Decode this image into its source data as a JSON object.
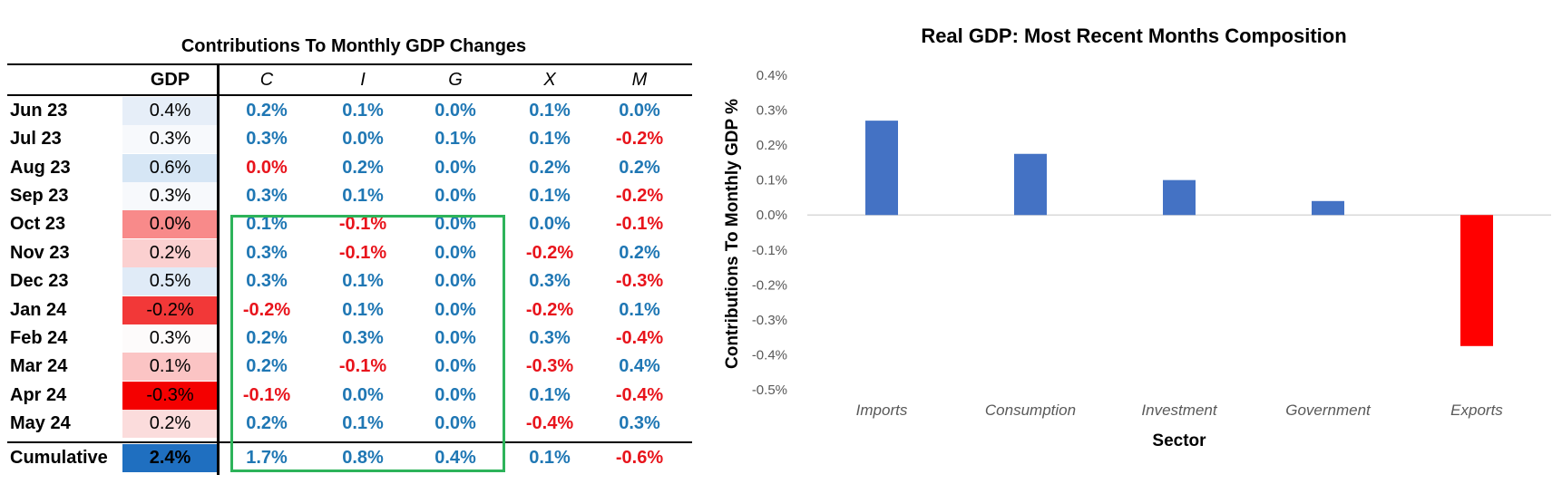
{
  "table": {
    "title": "Contributions To Monthly GDP Changes",
    "headers": [
      "GDP",
      "C",
      "I",
      "G",
      "X",
      "M"
    ],
    "rows": [
      {
        "label": "Jun 23",
        "gdp": "0.4%",
        "gdp_color": "#e6eef8",
        "cells": [
          "0.2%",
          "0.1%",
          "0.0%",
          "0.1%",
          "0.0%"
        ],
        "colors": [
          "#1f77b4",
          "#1f77b4",
          "#1f77b4",
          "#1f77b4",
          "#1f77b4"
        ]
      },
      {
        "label": "Jul 23",
        "gdp": "0.3%",
        "gdp_color": "#f7f9fc",
        "cells": [
          "0.3%",
          "0.0%",
          "0.1%",
          "0.1%",
          "-0.2%"
        ],
        "colors": [
          "#1f77b4",
          "#1f77b4",
          "#1f77b4",
          "#1f77b4",
          "#e8141c"
        ]
      },
      {
        "label": "Aug 23",
        "gdp": "0.6%",
        "gdp_color": "#d6e6f5",
        "cells": [
          "0.0%",
          "0.2%",
          "0.0%",
          "0.2%",
          "0.2%"
        ],
        "colors": [
          "#e8141c",
          "#1f77b4",
          "#1f77b4",
          "#1f77b4",
          "#1f77b4"
        ]
      },
      {
        "label": "Sep 23",
        "gdp": "0.3%",
        "gdp_color": "#f7f9fc",
        "cells": [
          "0.3%",
          "0.1%",
          "0.0%",
          "0.1%",
          "-0.2%"
        ],
        "colors": [
          "#1f77b4",
          "#1f77b4",
          "#1f77b4",
          "#1f77b4",
          "#e8141c"
        ]
      },
      {
        "label": "Oct 23",
        "gdp": "0.0%",
        "gdp_color": "#f88a8a",
        "cells": [
          "0.1%",
          "-0.1%",
          "0.0%",
          "0.0%",
          "-0.1%"
        ],
        "colors": [
          "#1f77b4",
          "#e8141c",
          "#1f77b4",
          "#1f77b4",
          "#e8141c"
        ]
      },
      {
        "label": "Nov 23",
        "gdp": "0.2%",
        "gdp_color": "#fbd0d0",
        "cells": [
          "0.3%",
          "-0.1%",
          "0.0%",
          "-0.2%",
          "0.2%"
        ],
        "colors": [
          "#1f77b4",
          "#e8141c",
          "#1f77b4",
          "#e8141c",
          "#1f77b4"
        ]
      },
      {
        "label": "Dec 23",
        "gdp": "0.5%",
        "gdp_color": "#e0ebf7",
        "cells": [
          "0.3%",
          "0.1%",
          "0.0%",
          "0.3%",
          "-0.3%"
        ],
        "colors": [
          "#1f77b4",
          "#1f77b4",
          "#1f77b4",
          "#1f77b4",
          "#e8141c"
        ]
      },
      {
        "label": "Jan 24",
        "gdp": "-0.2%",
        "gdp_color": "#f23838",
        "cells": [
          "-0.2%",
          "0.1%",
          "0.0%",
          "-0.2%",
          "0.1%"
        ],
        "colors": [
          "#e8141c",
          "#1f77b4",
          "#1f77b4",
          "#e8141c",
          "#1f77b4"
        ]
      },
      {
        "label": "Feb 24",
        "gdp": "0.3%",
        "gdp_color": "#fdfbfb",
        "cells": [
          "0.2%",
          "0.3%",
          "0.0%",
          "0.3%",
          "-0.4%"
        ],
        "colors": [
          "#1f77b4",
          "#1f77b4",
          "#1f77b4",
          "#1f77b4",
          "#e8141c"
        ]
      },
      {
        "label": "Mar 24",
        "gdp": "0.1%",
        "gdp_color": "#fbc4c4",
        "cells": [
          "0.2%",
          "-0.1%",
          "0.0%",
          "-0.3%",
          "0.4%"
        ],
        "colors": [
          "#1f77b4",
          "#e8141c",
          "#1f77b4",
          "#e8141c",
          "#1f77b4"
        ]
      },
      {
        "label": "Apr 24",
        "gdp": "-0.3%",
        "gdp_color": "#f40000",
        "cells": [
          "-0.1%",
          "0.0%",
          "0.0%",
          "0.1%",
          "-0.4%"
        ],
        "colors": [
          "#e8141c",
          "#1f77b4",
          "#1f77b4",
          "#1f77b4",
          "#e8141c"
        ]
      },
      {
        "label": "May 24",
        "gdp": "0.2%",
        "gdp_color": "#fbdcdc",
        "cells": [
          "0.2%",
          "0.1%",
          "0.0%",
          "-0.4%",
          "0.3%"
        ],
        "colors": [
          "#1f77b4",
          "#1f77b4",
          "#1f77b4",
          "#e8141c",
          "#1f77b4"
        ]
      }
    ],
    "cumulative": {
      "label": "Cumulative",
      "gdp": "2.4%",
      "gdp_color": "#1f6fc0",
      "cells": [
        "1.7%",
        "0.8%",
        "0.4%",
        "0.1%",
        "-0.6%"
      ],
      "colors": [
        "#1f77b4",
        "#1f77b4",
        "#1f77b4",
        "#1f77b4",
        "#e8141c"
      ]
    },
    "highlight_color": "#2db35a"
  },
  "chart_data": {
    "type": "bar",
    "title": "Real GDP: Most Recent Months Composition",
    "xlabel": "Sector",
    "ylabel": "Contributions To Monthly GDP %",
    "categories": [
      "Imports",
      "Consumption",
      "Investment",
      "Government",
      "Exports"
    ],
    "values": [
      0.27,
      0.175,
      0.1,
      0.04,
      -0.375
    ],
    "colors": [
      "#4472c4",
      "#4472c4",
      "#4472c4",
      "#4472c4",
      "#ff0000"
    ],
    "ylim": [
      -0.5,
      0.4
    ],
    "yticks": [
      "0.4%",
      "0.3%",
      "0.2%",
      "0.1%",
      "0.0%",
      "-0.1%",
      "-0.2%",
      "-0.3%",
      "-0.4%",
      "-0.5%"
    ],
    "grid": false,
    "legend": "none"
  }
}
